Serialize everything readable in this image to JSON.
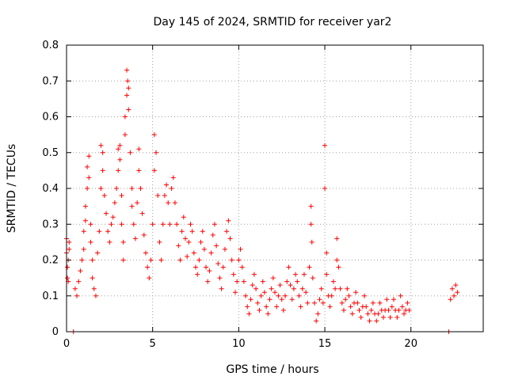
{
  "chart_data": {
    "type": "scatter",
    "title": "Day 145 of 2024, SRMTID for receiver yar2",
    "xlabel": "GPS time / hours",
    "ylabel": "SRMTID / TECUs",
    "xlim": [
      0,
      24.2
    ],
    "ylim": [
      0,
      0.8
    ],
    "xticks": [
      0,
      5,
      10,
      15,
      20
    ],
    "yticks": [
      0,
      0.1,
      0.2,
      0.3,
      0.4,
      0.5,
      0.6,
      0.7,
      0.8
    ],
    "xtick_labels": [
      "0",
      "5",
      "10",
      "15",
      "20"
    ],
    "ytick_labels": [
      "0",
      "0.1",
      "0.2",
      "0.3",
      "0.4",
      "0.5",
      "0.6",
      "0.7",
      "0.8"
    ],
    "grid": true,
    "marker": "+",
    "color": "#ff0000",
    "series": [
      {
        "name": "SRMTID",
        "points": [
          [
            0.0,
            0.26
          ],
          [
            0.0,
            0.22
          ],
          [
            0.05,
            0.18
          ],
          [
            0.05,
            0.15
          ],
          [
            0.1,
            0.14
          ],
          [
            0.1,
            0.2
          ],
          [
            0.15,
            0.23
          ],
          [
            0.15,
            0.25
          ],
          [
            0.4,
            0.0
          ],
          [
            0.5,
            0.12
          ],
          [
            0.6,
            0.1
          ],
          [
            0.7,
            0.14
          ],
          [
            0.8,
            0.17
          ],
          [
            0.9,
            0.2
          ],
          [
            1.0,
            0.23
          ],
          [
            1.0,
            0.28
          ],
          [
            1.1,
            0.31
          ],
          [
            1.1,
            0.35
          ],
          [
            1.2,
            0.4
          ],
          [
            1.2,
            0.46
          ],
          [
            1.3,
            0.49
          ],
          [
            1.3,
            0.43
          ],
          [
            1.4,
            0.3
          ],
          [
            1.4,
            0.25
          ],
          [
            1.5,
            0.2
          ],
          [
            1.5,
            0.15
          ],
          [
            1.6,
            0.12
          ],
          [
            1.7,
            0.1
          ],
          [
            1.8,
            0.22
          ],
          [
            1.9,
            0.28
          ],
          [
            2.0,
            0.4
          ],
          [
            2.0,
            0.52
          ],
          [
            2.1,
            0.5
          ],
          [
            2.1,
            0.45
          ],
          [
            2.2,
            0.38
          ],
          [
            2.3,
            0.33
          ],
          [
            2.4,
            0.28
          ],
          [
            2.5,
            0.25
          ],
          [
            2.6,
            0.3
          ],
          [
            2.7,
            0.32
          ],
          [
            2.8,
            0.36
          ],
          [
            2.9,
            0.4
          ],
          [
            3.0,
            0.45
          ],
          [
            3.0,
            0.51
          ],
          [
            3.1,
            0.52
          ],
          [
            3.1,
            0.48
          ],
          [
            3.2,
            0.38
          ],
          [
            3.2,
            0.3
          ],
          [
            3.3,
            0.25
          ],
          [
            3.3,
            0.2
          ],
          [
            3.4,
            0.55
          ],
          [
            3.4,
            0.6
          ],
          [
            3.5,
            0.66
          ],
          [
            3.5,
            0.73
          ],
          [
            3.55,
            0.7
          ],
          [
            3.6,
            0.68
          ],
          [
            3.6,
            0.62
          ],
          [
            3.7,
            0.5
          ],
          [
            3.8,
            0.4
          ],
          [
            3.8,
            0.35
          ],
          [
            3.9,
            0.3
          ],
          [
            4.0,
            0.26
          ],
          [
            4.1,
            0.36
          ],
          [
            4.2,
            0.45
          ],
          [
            4.2,
            0.51
          ],
          [
            4.3,
            0.4
          ],
          [
            4.4,
            0.33
          ],
          [
            4.5,
            0.27
          ],
          [
            4.6,
            0.22
          ],
          [
            4.7,
            0.18
          ],
          [
            4.8,
            0.15
          ],
          [
            4.9,
            0.2
          ],
          [
            5.0,
            0.3
          ],
          [
            5.1,
            0.45
          ],
          [
            5.1,
            0.55
          ],
          [
            5.2,
            0.5
          ],
          [
            5.3,
            0.38
          ],
          [
            5.4,
            0.25
          ],
          [
            5.5,
            0.2
          ],
          [
            5.6,
            0.3
          ],
          [
            5.7,
            0.38
          ],
          [
            5.8,
            0.41
          ],
          [
            5.9,
            0.36
          ],
          [
            6.0,
            0.3
          ],
          [
            6.1,
            0.4
          ],
          [
            6.2,
            0.43
          ],
          [
            6.3,
            0.36
          ],
          [
            6.4,
            0.3
          ],
          [
            6.5,
            0.24
          ],
          [
            6.6,
            0.2
          ],
          [
            6.7,
            0.28
          ],
          [
            6.8,
            0.32
          ],
          [
            6.9,
            0.26
          ],
          [
            7.0,
            0.21
          ],
          [
            7.1,
            0.25
          ],
          [
            7.2,
            0.3
          ],
          [
            7.3,
            0.28
          ],
          [
            7.4,
            0.22
          ],
          [
            7.5,
            0.18
          ],
          [
            7.6,
            0.16
          ],
          [
            7.7,
            0.2
          ],
          [
            7.8,
            0.25
          ],
          [
            7.9,
            0.28
          ],
          [
            8.0,
            0.23
          ],
          [
            8.1,
            0.18
          ],
          [
            8.2,
            0.14
          ],
          [
            8.3,
            0.17
          ],
          [
            8.4,
            0.22
          ],
          [
            8.5,
            0.27
          ],
          [
            8.6,
            0.3
          ],
          [
            8.7,
            0.24
          ],
          [
            8.8,
            0.19
          ],
          [
            8.9,
            0.15
          ],
          [
            9.0,
            0.12
          ],
          [
            9.1,
            0.18
          ],
          [
            9.2,
            0.23
          ],
          [
            9.3,
            0.28
          ],
          [
            9.4,
            0.31
          ],
          [
            9.5,
            0.26
          ],
          [
            9.6,
            0.2
          ],
          [
            9.7,
            0.16
          ],
          [
            9.8,
            0.11
          ],
          [
            9.9,
            0.14
          ],
          [
            10.0,
            0.2
          ],
          [
            10.1,
            0.23
          ],
          [
            10.2,
            0.18
          ],
          [
            10.3,
            0.14
          ],
          [
            10.4,
            0.1
          ],
          [
            10.5,
            0.07
          ],
          [
            10.6,
            0.05
          ],
          [
            10.7,
            0.09
          ],
          [
            10.8,
            0.13
          ],
          [
            10.9,
            0.16
          ],
          [
            11.0,
            0.12
          ],
          [
            11.1,
            0.08
          ],
          [
            11.2,
            0.06
          ],
          [
            11.3,
            0.1
          ],
          [
            11.4,
            0.14
          ],
          [
            11.5,
            0.11
          ],
          [
            11.6,
            0.07
          ],
          [
            11.7,
            0.05
          ],
          [
            11.8,
            0.09
          ],
          [
            11.9,
            0.12
          ],
          [
            12.0,
            0.15
          ],
          [
            12.1,
            0.11
          ],
          [
            12.2,
            0.07
          ],
          [
            12.3,
            0.1
          ],
          [
            12.4,
            0.13
          ],
          [
            12.5,
            0.09
          ],
          [
            12.6,
            0.06
          ],
          [
            12.7,
            0.1
          ],
          [
            12.8,
            0.14
          ],
          [
            12.9,
            0.18
          ],
          [
            13.0,
            0.13
          ],
          [
            13.1,
            0.09
          ],
          [
            13.2,
            0.12
          ],
          [
            13.3,
            0.16
          ],
          [
            13.4,
            0.14
          ],
          [
            13.5,
            0.1
          ],
          [
            13.6,
            0.07
          ],
          [
            13.7,
            0.12
          ],
          [
            13.8,
            0.16
          ],
          [
            13.9,
            0.11
          ],
          [
            14.0,
            0.08
          ],
          [
            14.1,
            0.18
          ],
          [
            14.2,
            0.3
          ],
          [
            14.2,
            0.35
          ],
          [
            14.25,
            0.25
          ],
          [
            14.3,
            0.15
          ],
          [
            14.4,
            0.08
          ],
          [
            14.5,
            0.03
          ],
          [
            14.6,
            0.05
          ],
          [
            14.7,
            0.09
          ],
          [
            14.8,
            0.12
          ],
          [
            14.9,
            0.08
          ],
          [
            15.0,
            0.52
          ],
          [
            15.0,
            0.4
          ],
          [
            15.1,
            0.22
          ],
          [
            15.1,
            0.16
          ],
          [
            15.2,
            0.1
          ],
          [
            15.3,
            0.07
          ],
          [
            15.4,
            0.1
          ],
          [
            15.5,
            0.14
          ],
          [
            15.6,
            0.12
          ],
          [
            15.7,
            0.2
          ],
          [
            15.7,
            0.26
          ],
          [
            15.8,
            0.18
          ],
          [
            15.9,
            0.12
          ],
          [
            16.0,
            0.08
          ],
          [
            16.1,
            0.06
          ],
          [
            16.2,
            0.09
          ],
          [
            16.3,
            0.12
          ],
          [
            16.4,
            0.1
          ],
          [
            16.5,
            0.07
          ],
          [
            16.6,
            0.05
          ],
          [
            16.7,
            0.08
          ],
          [
            16.8,
            0.11
          ],
          [
            16.9,
            0.08
          ],
          [
            17.0,
            0.06
          ],
          [
            17.1,
            0.04
          ],
          [
            17.2,
            0.07
          ],
          [
            17.3,
            0.1
          ],
          [
            17.4,
            0.07
          ],
          [
            17.5,
            0.05
          ],
          [
            17.6,
            0.03
          ],
          [
            17.7,
            0.06
          ],
          [
            17.8,
            0.08
          ],
          [
            17.9,
            0.05
          ],
          [
            18.0,
            0.03
          ],
          [
            18.1,
            0.05
          ],
          [
            18.2,
            0.08
          ],
          [
            18.3,
            0.06
          ],
          [
            18.4,
            0.04
          ],
          [
            18.5,
            0.06
          ],
          [
            18.6,
            0.09
          ],
          [
            18.7,
            0.06
          ],
          [
            18.8,
            0.04
          ],
          [
            18.9,
            0.07
          ],
          [
            19.0,
            0.09
          ],
          [
            19.1,
            0.06
          ],
          [
            19.2,
            0.04
          ],
          [
            19.3,
            0.06
          ],
          [
            19.4,
            0.1
          ],
          [
            19.5,
            0.07
          ],
          [
            19.6,
            0.05
          ],
          [
            19.7,
            0.06
          ],
          [
            19.8,
            0.08
          ],
          [
            19.9,
            0.06
          ],
          [
            22.2,
            0.0
          ],
          [
            22.3,
            0.09
          ],
          [
            22.4,
            0.12
          ],
          [
            22.5,
            0.1
          ],
          [
            22.6,
            0.13
          ],
          [
            22.7,
            0.11
          ]
        ]
      }
    ]
  }
}
